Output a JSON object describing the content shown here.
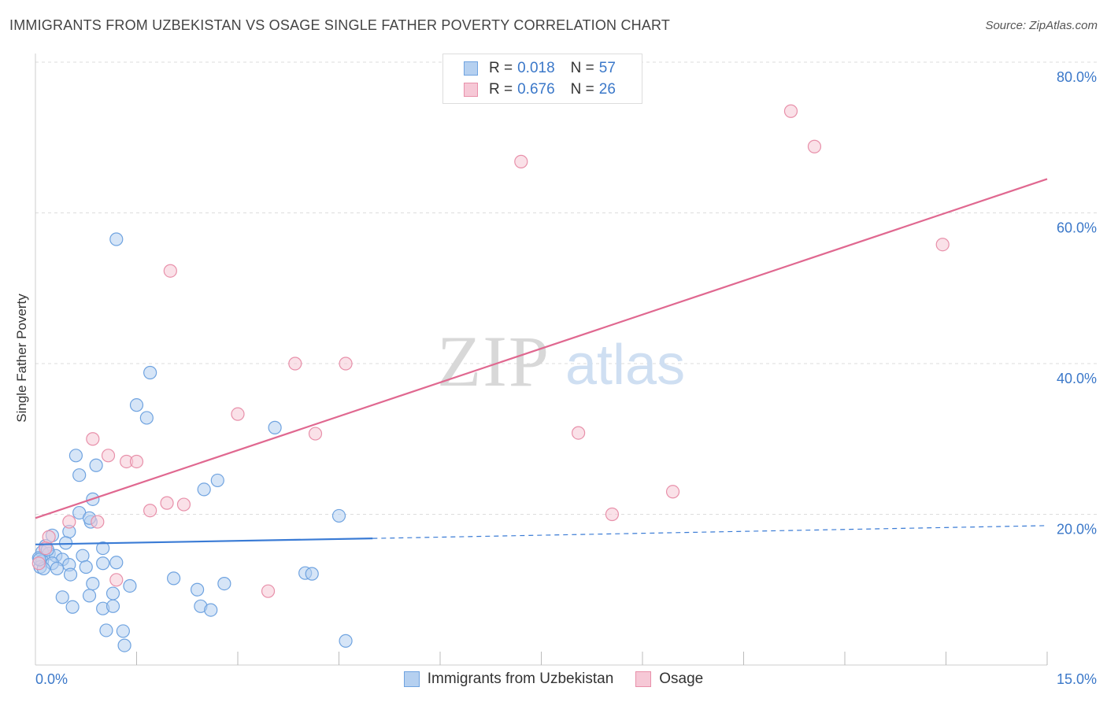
{
  "title": "IMMIGRANTS FROM UZBEKISTAN VS OSAGE SINGLE FATHER POVERTY CORRELATION CHART",
  "source": "Source: ZipAtlas.com",
  "watermark": {
    "zip": "ZIP",
    "atlas": "atlas"
  },
  "legend_top": {
    "rows": [
      {
        "r_label": "R =",
        "r_value": "0.018",
        "n_label": "N =",
        "n_value": "57"
      },
      {
        "r_label": "R =",
        "r_value": "0.676",
        "n_label": "N =",
        "n_value": "26"
      }
    ]
  },
  "legend_bottom": {
    "items": [
      {
        "label": "Immigrants from Uzbekistan"
      },
      {
        "label": "Osage"
      }
    ]
  },
  "chart_data": {
    "type": "scatter",
    "title": "IMMIGRANTS FROM UZBEKISTAN VS OSAGE SINGLE FATHER POVERTY CORRELATION CHART",
    "xlabel": "",
    "ylabel": "Single Father Poverty",
    "xlim": [
      0,
      15
    ],
    "ylim": [
      0,
      80
    ],
    "x_tick_labels": [
      "0.0%",
      "15.0%"
    ],
    "y_tick_labels": [
      "20.0%",
      "40.0%",
      "60.0%",
      "80.0%"
    ],
    "y_ticks": [
      20,
      40,
      60,
      80
    ],
    "grid": true,
    "legend_position": "top-center",
    "series": [
      {
        "name": "Immigrants from Uzbekistan",
        "color": "#6fa3e0",
        "fill": "#b5d0f0",
        "line_color": "#3a7bd5",
        "trend": {
          "x0": 0,
          "y0": 16.0,
          "x1": 5.0,
          "y1": 16.8,
          "dashed_to_x": 15,
          "dashed_to_y": 18.5
        },
        "points": [
          [
            1.2,
            56.5
          ],
          [
            1.7,
            38.8
          ],
          [
            1.5,
            34.5
          ],
          [
            1.65,
            32.8
          ],
          [
            3.55,
            31.5
          ],
          [
            0.6,
            27.8
          ],
          [
            0.9,
            26.5
          ],
          [
            0.65,
            25.2
          ],
          [
            2.7,
            24.5
          ],
          [
            2.5,
            23.3
          ],
          [
            0.85,
            22.0
          ],
          [
            0.65,
            20.2
          ],
          [
            0.82,
            19.0
          ],
          [
            4.5,
            19.8
          ],
          [
            0.8,
            19.5
          ],
          [
            0.25,
            17.2
          ],
          [
            0.5,
            17.7
          ],
          [
            0.45,
            16.2
          ],
          [
            1.0,
            15.5
          ],
          [
            0.15,
            15.8
          ],
          [
            0.1,
            15.0
          ],
          [
            0.2,
            14.8
          ],
          [
            0.05,
            14.2
          ],
          [
            0.3,
            14.5
          ],
          [
            0.4,
            14.0
          ],
          [
            0.7,
            14.5
          ],
          [
            0.1,
            13.8
          ],
          [
            0.25,
            13.5
          ],
          [
            0.5,
            13.3
          ],
          [
            0.75,
            13.0
          ],
          [
            1.0,
            13.5
          ],
          [
            1.2,
            13.6
          ],
          [
            0.07,
            13.0
          ],
          [
            0.32,
            12.8
          ],
          [
            0.52,
            12.0
          ],
          [
            2.05,
            11.5
          ],
          [
            4.0,
            12.2
          ],
          [
            4.1,
            12.1
          ],
          [
            0.85,
            10.8
          ],
          [
            1.4,
            10.5
          ],
          [
            2.4,
            10.0
          ],
          [
            2.8,
            10.8
          ],
          [
            1.15,
            9.5
          ],
          [
            0.4,
            9.0
          ],
          [
            0.8,
            9.2
          ],
          [
            2.45,
            7.8
          ],
          [
            2.6,
            7.3
          ],
          [
            0.55,
            7.7
          ],
          [
            1.0,
            7.5
          ],
          [
            1.15,
            7.8
          ],
          [
            1.05,
            4.6
          ],
          [
            1.3,
            4.5
          ],
          [
            1.32,
            2.6
          ],
          [
            4.6,
            3.2
          ],
          [
            0.12,
            12.8
          ],
          [
            0.06,
            14.0
          ],
          [
            0.18,
            15.3
          ]
        ]
      },
      {
        "name": "Osage",
        "color": "#e890aa",
        "fill": "#f6c8d6",
        "line_color": "#e06890",
        "trend": {
          "x0": 0,
          "y0": 19.5,
          "x1": 15,
          "y1": 64.5
        },
        "points": [
          [
            11.2,
            73.5
          ],
          [
            11.55,
            68.8
          ],
          [
            7.2,
            66.8
          ],
          [
            13.45,
            55.8
          ],
          [
            2.0,
            52.3
          ],
          [
            3.85,
            40.0
          ],
          [
            4.6,
            40.0
          ],
          [
            3.0,
            33.3
          ],
          [
            4.15,
            30.7
          ],
          [
            8.05,
            30.8
          ],
          [
            0.85,
            30.0
          ],
          [
            1.08,
            27.8
          ],
          [
            1.35,
            27.0
          ],
          [
            1.5,
            27.0
          ],
          [
            9.45,
            23.0
          ],
          [
            1.95,
            21.5
          ],
          [
            2.2,
            21.3
          ],
          [
            1.7,
            20.5
          ],
          [
            8.55,
            20.0
          ],
          [
            0.5,
            19.0
          ],
          [
            0.92,
            19.0
          ],
          [
            0.2,
            17.0
          ],
          [
            0.15,
            15.5
          ],
          [
            1.2,
            11.3
          ],
          [
            3.45,
            9.8
          ],
          [
            0.05,
            13.5
          ]
        ]
      }
    ]
  }
}
